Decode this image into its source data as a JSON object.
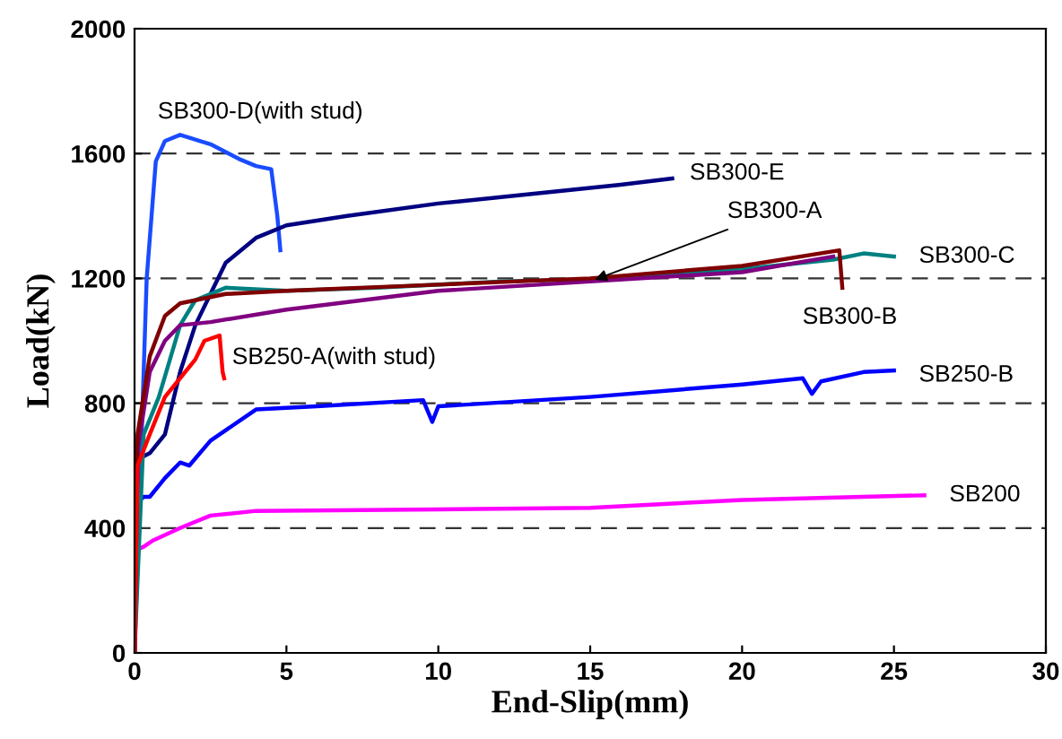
{
  "chart_data": {
    "type": "line",
    "xlabel": "End-Slip(mm)",
    "ylabel": "Load(kN)",
    "xlim": [
      0,
      30
    ],
    "xticks": [
      0,
      5,
      10,
      15,
      20,
      25,
      30
    ],
    "ylim": [
      0,
      2000
    ],
    "yticks": [
      0,
      400,
      800,
      1200,
      1600,
      2000
    ],
    "grid": "y",
    "legend": false,
    "marker": "none",
    "line_style": "solid",
    "series": [
      {
        "name": "SB200",
        "color": "#ff00ff",
        "x": [
          0,
          0.05,
          0.3,
          0.6,
          1.5,
          2.5,
          4,
          10,
          15,
          20,
          26
        ],
        "values": [
          0,
          330,
          340,
          360,
          400,
          440,
          455,
          460,
          465,
          490,
          505
        ]
      },
      {
        "name": "SB250-B",
        "color": "#0000ff",
        "x": [
          0,
          0.05,
          0.3,
          0.5,
          1,
          1.5,
          1.8,
          2.5,
          4,
          6,
          9.5,
          9.8,
          10,
          15,
          20,
          22,
          22.3,
          22.6,
          24,
          25
        ],
        "values": [
          0,
          480,
          500,
          500,
          560,
          610,
          600,
          680,
          780,
          790,
          810,
          740,
          790,
          820,
          860,
          880,
          830,
          870,
          900,
          905
        ]
      },
      {
        "name": "SB300-D(with stud)",
        "color": "#1a4cff",
        "x": [
          0,
          0.2,
          0.4,
          0.7,
          1,
          1.5,
          2.5,
          3.1,
          3.5,
          4,
          4.5,
          4.7,
          4.8
        ],
        "values": [
          0,
          600,
          1200,
          1575,
          1640,
          1660,
          1630,
          1600,
          1580,
          1560,
          1550,
          1400,
          1290
        ]
      },
      {
        "name": "SB300-E",
        "color": "#000080",
        "x": [
          0,
          0.1,
          0.5,
          1,
          1.5,
          2,
          2.5,
          3,
          4,
          5,
          7,
          10,
          13,
          16,
          17.7
        ],
        "values": [
          0,
          620,
          640,
          700,
          900,
          1050,
          1150,
          1250,
          1330,
          1370,
          1400,
          1440,
          1470,
          1500,
          1520
        ]
      },
      {
        "name": "SB300-C",
        "color": "#008080",
        "x": [
          0,
          0.3,
          0.8,
          1.5,
          2,
          3,
          5,
          8,
          12,
          16,
          20,
          23,
          24,
          25
        ],
        "values": [
          0,
          700,
          820,
          1050,
          1130,
          1170,
          1160,
          1170,
          1190,
          1200,
          1230,
          1260,
          1280,
          1270
        ]
      },
      {
        "name": "SB300-A",
        "color": "#800080",
        "x": [
          0,
          0.1,
          0.5,
          1,
          1.5,
          2.5,
          5,
          10,
          15,
          20,
          23
        ],
        "values": [
          0,
          650,
          900,
          1000,
          1050,
          1060,
          1100,
          1160,
          1190,
          1220,
          1270
        ]
      },
      {
        "name": "SB300-B",
        "color": "#800000",
        "x": [
          0,
          0.1,
          0.5,
          1,
          1.5,
          3,
          5,
          10,
          15,
          20,
          23.2,
          23.3
        ],
        "values": [
          0,
          700,
          950,
          1080,
          1120,
          1150,
          1160,
          1180,
          1200,
          1240,
          1290,
          1170
        ]
      },
      {
        "name": "SB250-A(with stud)",
        "color": "#ff0000",
        "x": [
          0,
          0.1,
          0.5,
          1,
          1.5,
          2,
          2.3,
          2.8,
          2.9,
          2.95
        ],
        "values": [
          0,
          600,
          700,
          820,
          880,
          940,
          1000,
          1017,
          900,
          880
        ]
      }
    ]
  }
}
